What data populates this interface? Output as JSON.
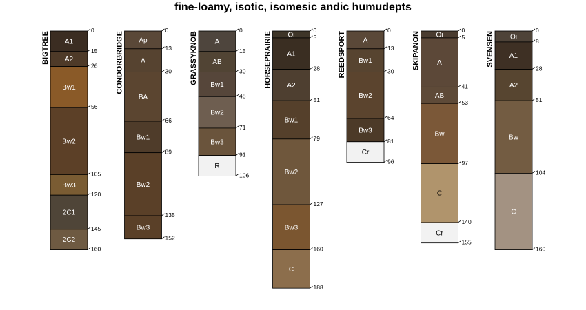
{
  "title": "fine-loamy, isotic, isomesic andic humudepts",
  "profiles": [
    {
      "id": "BIGTREE",
      "max_depth": 160,
      "horizons": [
        {
          "name": "A1",
          "top": 0,
          "bottom": 15,
          "color": "#3b2d22",
          "text": "#ffffff"
        },
        {
          "name": "A2",
          "top": 15,
          "bottom": 26,
          "color": "#4e3a28",
          "text": "#ffffff"
        },
        {
          "name": "Bw1",
          "top": 26,
          "bottom": 56,
          "color": "#8a5a28",
          "text": "#ffffff"
        },
        {
          "name": "Bw2",
          "top": 56,
          "bottom": 105,
          "color": "#5c4027",
          "text": "#ffffff"
        },
        {
          "name": "Bw3",
          "top": 105,
          "bottom": 120,
          "color": "#7a5c33",
          "text": "#ffffff"
        },
        {
          "name": "2C1",
          "top": 120,
          "bottom": 145,
          "color": "#4f4538",
          "text": "#ffffff"
        },
        {
          "name": "2C2",
          "top": 145,
          "bottom": 160,
          "color": "#6e5a42",
          "text": "#ffffff"
        }
      ]
    },
    {
      "id": "CONDORBRIDGE",
      "max_depth": 152,
      "horizons": [
        {
          "name": "Ap",
          "top": 0,
          "bottom": 13,
          "color": "#5a4838",
          "text": "#ffffff"
        },
        {
          "name": "A",
          "top": 13,
          "bottom": 30,
          "color": "#564330",
          "text": "#ffffff"
        },
        {
          "name": "BA",
          "top": 30,
          "bottom": 66,
          "color": "#5b4530",
          "text": "#ffffff"
        },
        {
          "name": "Bw1",
          "top": 66,
          "bottom": 89,
          "color": "#4f3c2a",
          "text": "#ffffff"
        },
        {
          "name": "Bw2",
          "top": 89,
          "bottom": 135,
          "color": "#5a4028",
          "text": "#ffffff"
        },
        {
          "name": "Bw3",
          "top": 135,
          "bottom": 152,
          "color": "#5a4028",
          "text": "#ffffff"
        }
      ]
    },
    {
      "id": "GRASSYKNOB",
      "max_depth": 106,
      "horizons": [
        {
          "name": "A",
          "top": 0,
          "bottom": 15,
          "color": "#4e453d",
          "text": "#ffffff"
        },
        {
          "name": "AB",
          "top": 15,
          "bottom": 30,
          "color": "#514434",
          "text": "#ffffff"
        },
        {
          "name": "Bw1",
          "top": 30,
          "bottom": 48,
          "color": "#56463a",
          "text": "#ffffff"
        },
        {
          "name": "Bw2",
          "top": 48,
          "bottom": 71,
          "color": "#6e5e50",
          "text": "#ffffff"
        },
        {
          "name": "Bw3",
          "top": 71,
          "bottom": 91,
          "color": "#6a543c",
          "text": "#ffffff"
        },
        {
          "name": "R",
          "top": 91,
          "bottom": 106,
          "color": "#f2f2f2",
          "text": "#000000"
        }
      ]
    },
    {
      "id": "HORSEPRAIRIE",
      "max_depth": 188,
      "horizons": [
        {
          "name": "Oi",
          "top": 0,
          "bottom": 5,
          "color": "#3e3528",
          "text": "#ffffff"
        },
        {
          "name": "A1",
          "top": 5,
          "bottom": 28,
          "color": "#3a2e22",
          "text": "#ffffff"
        },
        {
          "name": "A2",
          "top": 28,
          "bottom": 51,
          "color": "#4e3f30",
          "text": "#ffffff"
        },
        {
          "name": "Bw1",
          "top": 51,
          "bottom": 79,
          "color": "#55402b",
          "text": "#ffffff"
        },
        {
          "name": "Bw2",
          "top": 79,
          "bottom": 127,
          "color": "#6f573c",
          "text": "#ffffff"
        },
        {
          "name": "Bw3",
          "top": 127,
          "bottom": 160,
          "color": "#7b5630",
          "text": "#ffffff"
        },
        {
          "name": "C",
          "top": 160,
          "bottom": 188,
          "color": "#8c6e4c",
          "text": "#ffffff"
        }
      ]
    },
    {
      "id": "REEDSPORT",
      "max_depth": 96,
      "horizons": [
        {
          "name": "A",
          "top": 0,
          "bottom": 13,
          "color": "#5a4838",
          "text": "#ffffff"
        },
        {
          "name": "Bw1",
          "top": 13,
          "bottom": 30,
          "color": "#574430",
          "text": "#ffffff"
        },
        {
          "name": "Bw2",
          "top": 30,
          "bottom": 64,
          "color": "#5b442e",
          "text": "#ffffff"
        },
        {
          "name": "Bw3",
          "top": 64,
          "bottom": 81,
          "color": "#4c3a28",
          "text": "#ffffff"
        },
        {
          "name": "Cr",
          "top": 81,
          "bottom": 96,
          "color": "#f2f2f2",
          "text": "#000000"
        }
      ]
    },
    {
      "id": "SKIPANON",
      "max_depth": 155,
      "horizons": [
        {
          "name": "Oi",
          "top": 0,
          "bottom": 5,
          "color": "#4a3c30",
          "text": "#ffffff"
        },
        {
          "name": "A",
          "top": 5,
          "bottom": 41,
          "color": "#5c4838",
          "text": "#ffffff"
        },
        {
          "name": "AB",
          "top": 41,
          "bottom": 53,
          "color": "#5e4a38",
          "text": "#ffffff"
        },
        {
          "name": "Bw",
          "top": 53,
          "bottom": 97,
          "color": "#7b5838",
          "text": "#ffffff"
        },
        {
          "name": "C",
          "top": 97,
          "bottom": 140,
          "color": "#b0946c",
          "text": "#000000"
        },
        {
          "name": "Cr",
          "top": 140,
          "bottom": 155,
          "color": "#f2f2f2",
          "text": "#000000"
        }
      ]
    },
    {
      "id": "SVENSEN",
      "max_depth": 160,
      "horizons": [
        {
          "name": "Oi",
          "top": 0,
          "bottom": 8,
          "color": "#4e4338",
          "text": "#ffffff"
        },
        {
          "name": "A1",
          "top": 8,
          "bottom": 28,
          "color": "#3e3024",
          "text": "#ffffff"
        },
        {
          "name": "A2",
          "top": 28,
          "bottom": 51,
          "color": "#574530",
          "text": "#ffffff"
        },
        {
          "name": "Bw",
          "top": 51,
          "bottom": 104,
          "color": "#735c42",
          "text": "#ffffff"
        },
        {
          "name": "C",
          "top": 104,
          "bottom": 160,
          "color": "#a39282",
          "text": "#ffffff"
        }
      ]
    }
  ]
}
